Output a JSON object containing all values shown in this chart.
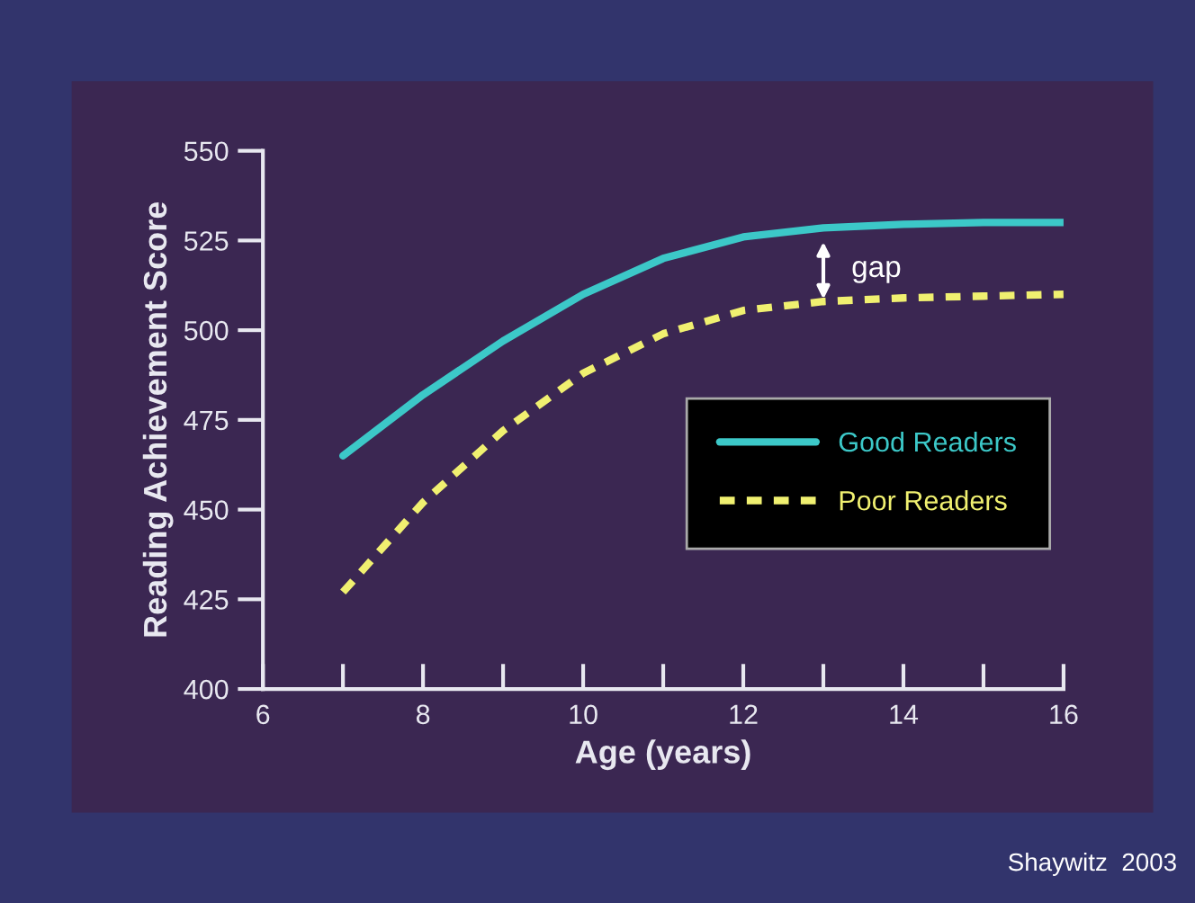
{
  "chart_data": {
    "type": "line",
    "xlabel": "Age (years)",
    "ylabel": "Reading Achievement Score",
    "x": [
      7,
      8,
      9,
      10,
      11,
      12,
      13,
      14,
      15,
      16
    ],
    "series": [
      {
        "name": "Good Readers",
        "color": "#3cc8c8",
        "line_style": "solid",
        "values": [
          465,
          482,
          497,
          510,
          520,
          526,
          528.5,
          529.5,
          530,
          530
        ]
      },
      {
        "name": "Poor Readers",
        "color": "#f0f070",
        "line_style": "dotted",
        "values": [
          427,
          452,
          472,
          488,
          499,
          505.5,
          508,
          509,
          509.5,
          510
        ]
      }
    ],
    "xlim": [
      6,
      16
    ],
    "ylim": [
      400,
      550
    ],
    "xticks": [
      6,
      {
        "value": 7,
        "label": null
      },
      8,
      {
        "value": 9,
        "label": null
      },
      10,
      {
        "value": 11,
        "label": null
      },
      12,
      {
        "value": 13,
        "label": null
      },
      14,
      {
        "value": 15,
        "label": null
      },
      16
    ],
    "yticks": [
      400,
      425,
      450,
      475,
      500,
      525,
      550
    ],
    "grid": false,
    "legend": "right",
    "marker": "none",
    "annotations": [
      "gap",
      "Shaywitz  2003"
    ]
  }
}
